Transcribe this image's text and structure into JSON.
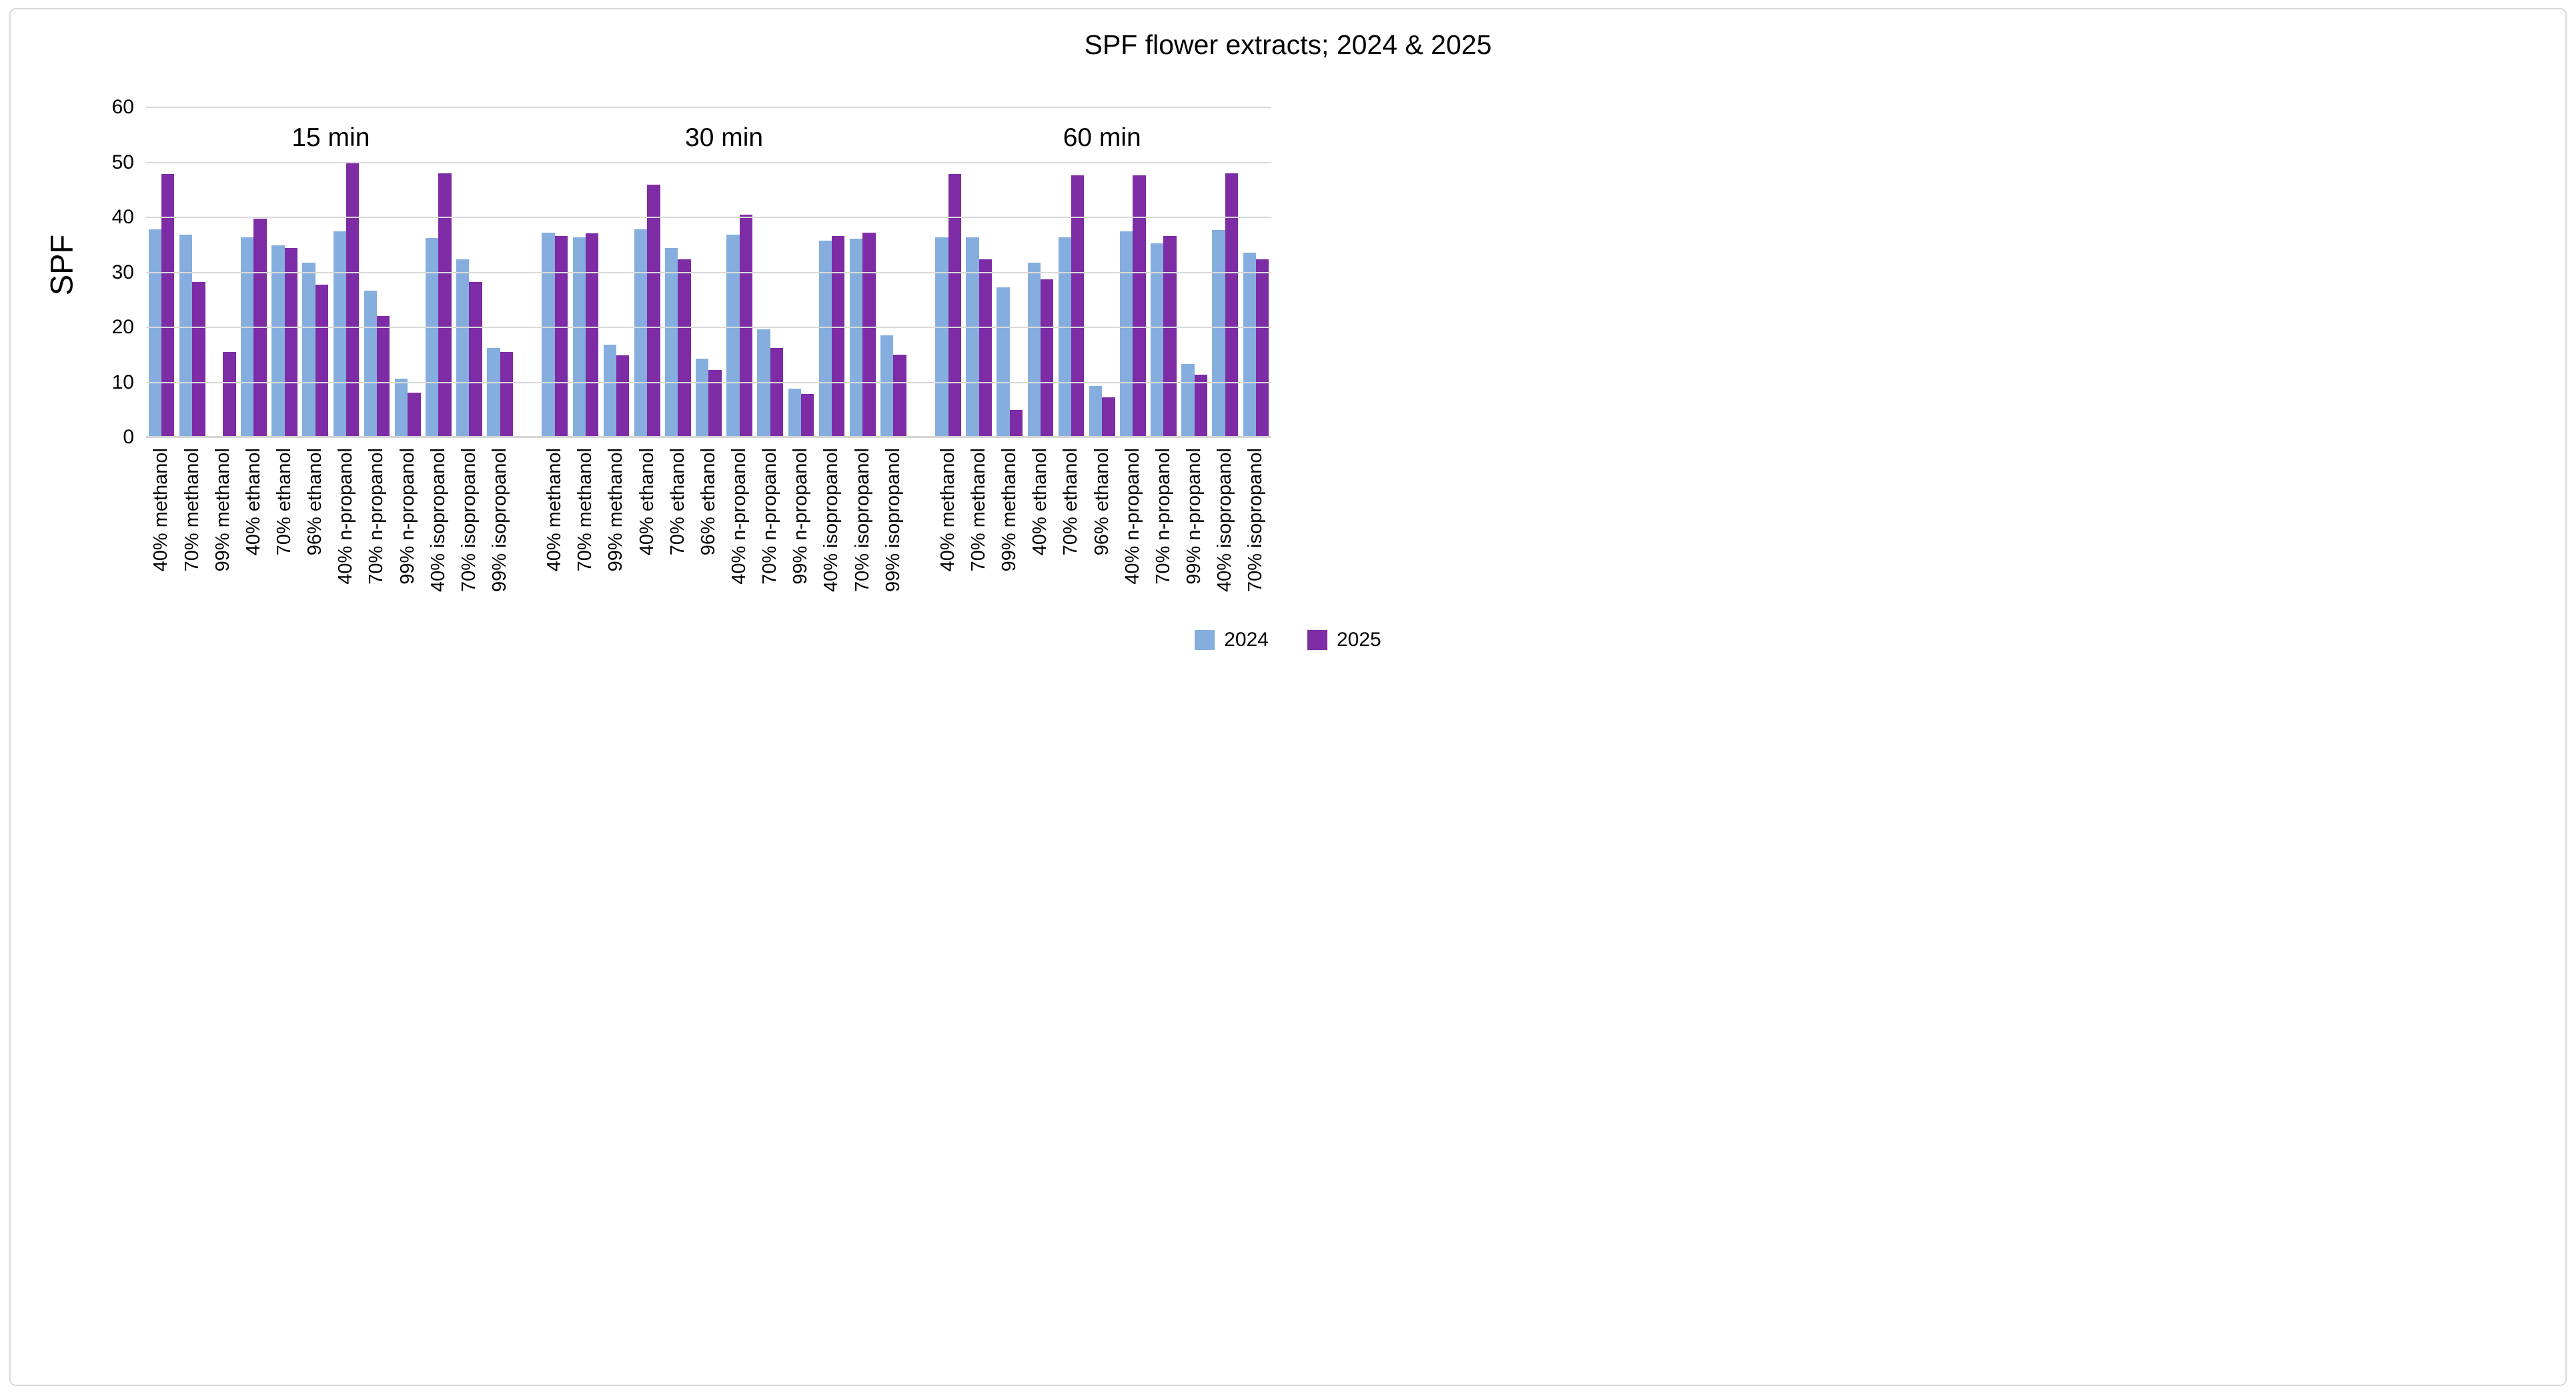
{
  "title": "SPF flower extracts; 2024 & 2025",
  "y_axis": {
    "label": "SPF",
    "ticks": [
      0,
      10,
      20,
      30,
      40,
      50,
      60
    ],
    "max": 60
  },
  "legend": {
    "items": [
      {
        "label": "2024",
        "color": "#85AEDF"
      },
      {
        "label": "2025",
        "color": "#7E2BA6"
      }
    ]
  },
  "colors": {
    "series_2024": "#85AEDF",
    "series_2025": "#7E2BA6",
    "gridline": "#D9D9D9",
    "axis_line": "#D6D6D6",
    "frame_border": "#D9D9D9"
  },
  "chart_data": {
    "type": "bar",
    "title": "SPF flower extracts; 2024 & 2025",
    "xlabel": "",
    "ylabel": "SPF",
    "ylim": [
      0,
      60
    ],
    "y_ticks": [
      0,
      10,
      20,
      30,
      40,
      50,
      60
    ],
    "grid": true,
    "legend_position": "bottom",
    "series_names": [
      "2024",
      "2025"
    ],
    "groups": [
      {
        "label": "15 min",
        "categories": [
          "40% methanol",
          "70% methanol",
          "99% methanol",
          "40% ethanol",
          "70% ethanol",
          "96% ethanol",
          "40% n-propanol",
          "70% n-propanol",
          "99% n-propanol",
          "40% isopropanol",
          "70% isopropanol",
          "99% isopropanol"
        ],
        "series": [
          {
            "name": "2024",
            "values": [
              37.8,
              36.9,
              null,
              36.4,
              34.9,
              31.7,
              37.4,
              26.7,
              10.7,
              36.2,
              32.4,
              16.2
            ]
          },
          {
            "name": "2025",
            "values": [
              47.9,
              28.2,
              15.5,
              39.8,
              34.4,
              27.7,
              50.0,
              22.1,
              8.1,
              48.0,
              28.2,
              15.5
            ]
          }
        ]
      },
      {
        "label": "30 min",
        "categories": [
          "40% methanol",
          "70% methanol",
          "99% methanol",
          "40% ethanol",
          "70% ethanol",
          "96% ethanol",
          "40% n-propanol",
          "70% n-propanol",
          "99% n-propanol",
          "40% isopropanol",
          "70% isopropanol",
          "99% isopropanol"
        ],
        "series": [
          {
            "name": "2024",
            "values": [
              37.2,
              36.4,
              16.8,
              37.8,
              34.4,
              14.3,
              36.8,
              19.6,
              8.8,
              35.7,
              36.1,
              18.6
            ]
          },
          {
            "name": "2025",
            "values": [
              36.6,
              37.1,
              14.9,
              45.9,
              32.4,
              12.2,
              40.5,
              16.2,
              7.9,
              36.6,
              37.2,
              15.0
            ]
          }
        ]
      },
      {
        "label": "60 min",
        "categories": [
          "40% methanol",
          "70% methanol",
          "99% methanol",
          "40% ethanol",
          "70% ethanol",
          "96% ethanol",
          "40% n-propanol",
          "70% n-propanol",
          "99% n-propanol",
          "40% isopropanol",
          "70% isopropanol"
        ],
        "series": [
          {
            "name": "2024",
            "values": [
              36.4,
              36.4,
              27.3,
              31.8,
              36.4,
              9.3,
              37.5,
              35.3,
              13.3,
              37.7,
              33.6
            ]
          },
          {
            "name": "2025",
            "values": [
              47.9,
              32.4,
              5.0,
              28.7,
              47.6,
              7.3,
              47.6,
              36.6,
              11.4,
              48.0,
              32.4
            ]
          }
        ]
      }
    ]
  }
}
